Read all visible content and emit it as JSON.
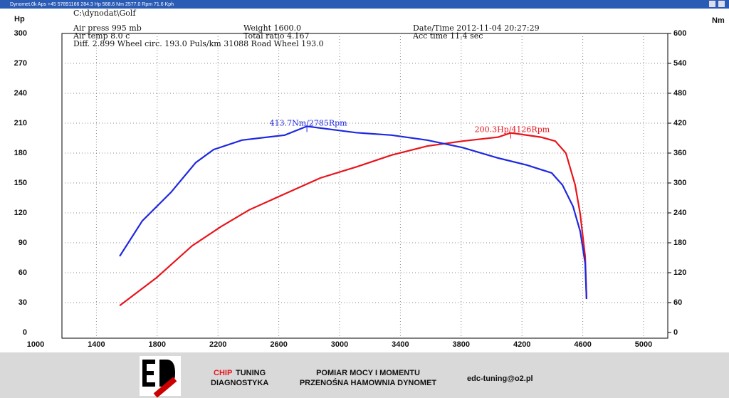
{
  "window_title": "Dynomet.0k Aps +45 57891166  284.3 Hp 568.6 Nm 2577.0 Rpm 71.6 Kph",
  "chart_data": {
    "type": "line",
    "y_label": "Hp",
    "y2_label": "Nm",
    "file": "C:\\dynodat\\Golf",
    "info": [
      "Air press  995 mb",
      "Air temp  8.0 c",
      "Diff.   2.899  Wheel circ. 193.0  Puls/km  31088  Road Wheel 193.0",
      "Weight  1600.0",
      "Total ratio 4.167",
      "Date/Time  2012-11-04 20:27:29",
      "Acc time  11.4 sec"
    ],
    "xlim": [
      1000,
      5000
    ],
    "xticks": [
      1000,
      1400,
      1800,
      2200,
      2600,
      3000,
      3400,
      3800,
      4200,
      4600,
      5000
    ],
    "ylim": [
      0,
      300
    ],
    "yticks": [
      0,
      30,
      60,
      90,
      120,
      150,
      180,
      210,
      240,
      270,
      300
    ],
    "y2lim": [
      0,
      600
    ],
    "y2ticks": [
      0,
      60,
      120,
      180,
      240,
      300,
      360,
      420,
      480,
      540,
      600
    ],
    "grid": true,
    "series": [
      {
        "name": "Hp",
        "color": "#e8141c",
        "axis": "y",
        "x": [
          1553,
          1796,
          2030,
          2218,
          2405,
          2639,
          2873,
          3108,
          3342,
          3576,
          3810,
          4044,
          4126,
          4325,
          4419,
          4489,
          4550,
          4583,
          4616,
          4625
        ],
        "values": [
          27,
          55,
          87,
          106,
          123,
          139,
          155,
          166,
          178,
          187,
          192,
          196,
          200.3,
          196,
          192,
          180,
          148,
          119,
          76,
          34
        ]
      },
      {
        "name": "Nm",
        "color": "#1e28e0",
        "axis": "y2",
        "x": [
          1553,
          1702,
          1890,
          2054,
          2171,
          2358,
          2639,
          2785,
          3108,
          3342,
          3576,
          3810,
          4044,
          4232,
          4396,
          4466,
          4536,
          4583,
          4616,
          4625
        ],
        "values": [
          153,
          224,
          281,
          341,
          367,
          386,
          396,
          413.7,
          401,
          396,
          386,
          371,
          350,
          336,
          320,
          296,
          253,
          203,
          139,
          67
        ]
      }
    ],
    "annotations": [
      {
        "series": 1,
        "point": 7,
        "text": "413.7Nm/2785Rpm"
      },
      {
        "series": 0,
        "point": 12,
        "text": "200.3Hp/4126Rpm"
      }
    ]
  },
  "footer": {
    "brand_a": "CHIP",
    "brand_b": "TUNING",
    "brand_c": "DIAGNOSTYKA",
    "line1": "POMIAR MOCY I MOMENTU",
    "line2": "PRZENOŚNA HAMOWNIA DYNOMET",
    "email": "edc-tuning@o2.pl"
  }
}
